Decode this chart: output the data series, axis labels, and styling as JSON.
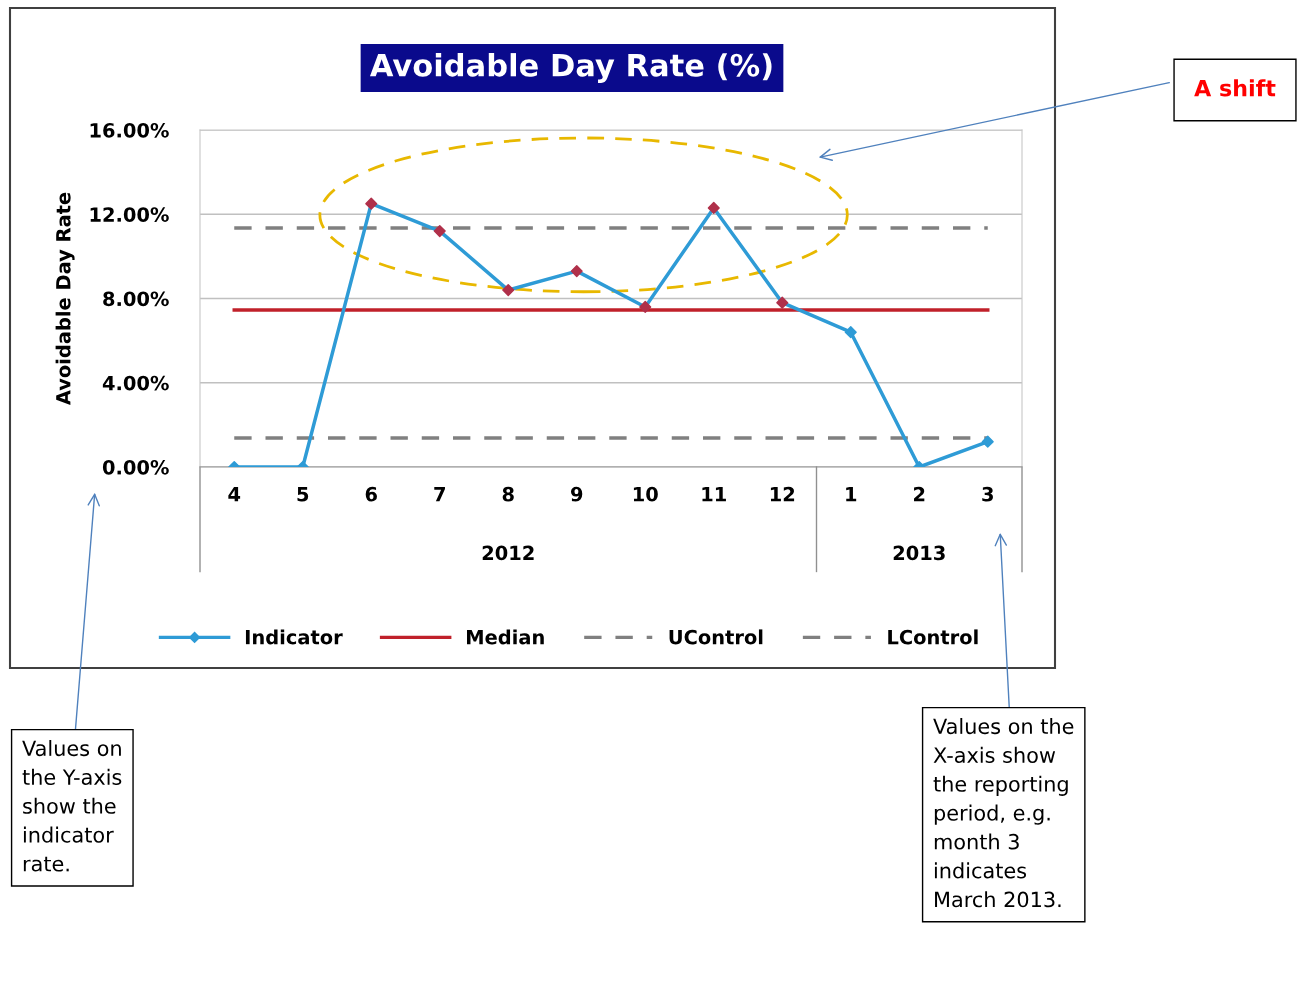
{
  "chart_data": {
    "type": "line",
    "title": "Avoidable Day Rate (%)",
    "ylabel": "Avoidable Day Rate",
    "categories": [
      "4",
      "5",
      "6",
      "7",
      "8",
      "9",
      "10",
      "11",
      "12",
      "1",
      "2",
      "3"
    ],
    "series": [
      {
        "name": "Indicator",
        "color": "#2e9bd6",
        "colors": [
          "#2e9bd6",
          "#2e9bd6",
          "#b0304a",
          "#b0304a",
          "#b0304a",
          "#b0304a",
          "#b0304a",
          "#b0304a",
          "#b0304a",
          "#2e9bd6",
          "#2e9bd6",
          "#2e9bd6"
        ],
        "values": [
          0,
          0,
          12.5,
          11.2,
          8.4,
          9.3,
          7.6,
          12.3,
          7.8,
          6.4,
          0,
          1.2
        ],
        "marker": "diamond",
        "line_style": "solid"
      },
      {
        "name": "Median",
        "color": "#c0202a",
        "values": [
          7.45,
          7.45,
          7.45,
          7.45,
          7.45,
          7.45,
          7.45,
          7.45,
          7.45,
          7.45,
          7.45,
          7.45
        ],
        "line_style": "solid"
      },
      {
        "name": "UControl",
        "color": "#808080",
        "values": [
          11.35,
          11.35,
          11.35,
          11.35,
          11.35,
          11.35,
          11.35,
          11.35,
          11.35,
          11.35,
          11.35,
          11.35
        ],
        "line_style": "dashed"
      },
      {
        "name": "LControl",
        "color": "#808080",
        "values": [
          1.38,
          1.38,
          1.38,
          1.38,
          1.38,
          1.38,
          1.38,
          1.38,
          1.38,
          1.38,
          1.38,
          1.38
        ],
        "line_style": "dashed"
      }
    ],
    "ylim": [
      0,
      16
    ],
    "yticks": [
      {
        "value": 0,
        "label": "0.00%"
      },
      {
        "value": 4,
        "label": "4.00%"
      },
      {
        "value": 8,
        "label": "8.00%"
      },
      {
        "value": 12,
        "label": "12.00%"
      },
      {
        "value": 16,
        "label": "16.00%"
      }
    ],
    "grid": "y",
    "legend": "bottom",
    "annotations": [
      "2012",
      "2013",
      "A shift",
      "Values on\nthe Y-axis\nshow the\nindicator\nrate.",
      "Values on the\nX-axis show\nthe reporting\nperiod, e.g.\nmonth 3\nindicates\nMarch 2013."
    ]
  }
}
